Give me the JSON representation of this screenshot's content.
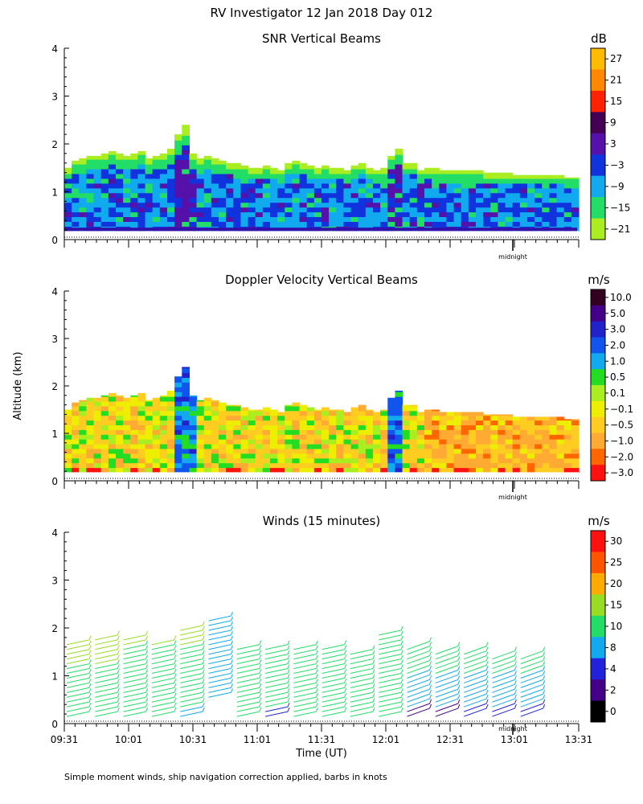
{
  "figure_title": "RV Investigator  12 Jan 2018 Day 012",
  "shared": {
    "ylabel": "Altitude (km)",
    "xlabel": "Time (UT)",
    "midnight_label": "midnight",
    "footnote": "Simple moment winds, ship navigation correction applied, barbs in knots"
  },
  "chart_data": [
    {
      "type": "heatmap",
      "title": "SNR Vertical Beams",
      "unit": "dB",
      "ylim": [
        0,
        4
      ],
      "yticks": [
        "0",
        "1",
        "2",
        "3",
        "4"
      ],
      "colorbar_labels": [
        "27",
        "21",
        "15",
        "9",
        "3",
        "−3",
        "−9",
        "−15",
        "−21"
      ],
      "colorbar_colors": [
        "#ffbb00",
        "#ff8800",
        "#ff2200",
        "#440055",
        "#5511aa",
        "#1133dd",
        "#11aaee",
        "#22dd66",
        "#aaee22"
      ],
      "cloud_top_km": [
        1.5,
        1.65,
        1.7,
        1.75,
        1.75,
        1.8,
        1.85,
        1.8,
        1.75,
        1.8,
        1.85,
        1.7,
        1.75,
        1.8,
        1.9,
        2.2,
        2.4,
        1.8,
        1.7,
        1.75,
        1.7,
        1.65,
        1.6,
        1.6,
        1.55,
        1.5,
        1.5,
        1.55,
        1.5,
        1.45,
        1.6,
        1.65,
        1.6,
        1.55,
        1.5,
        1.55,
        1.5,
        1.5,
        1.45,
        1.55,
        1.6,
        1.5,
        1.45,
        1.5,
        1.75,
        1.9,
        1.6,
        1.6,
        1.45,
        1.5,
        1.5,
        1.45,
        1.45,
        1.45,
        1.45,
        1.45,
        1.45,
        1.4,
        1.4,
        1.4,
        1.4,
        1.35,
        1.35,
        1.35,
        1.35,
        1.35,
        1.35,
        1.35,
        1.3,
        1.3
      ]
    },
    {
      "type": "heatmap",
      "title": "Doppler Velocity Vertical Beams",
      "unit": "m/s",
      "ylim": [
        0,
        4
      ],
      "yticks": [
        "0",
        "1",
        "2",
        "3",
        "4"
      ],
      "colorbar_labels": [
        "10.0",
        "5.0",
        "3.0",
        "2.0",
        "1.0",
        "0.5",
        "0.1",
        "−0.1",
        "−0.5",
        "−1.0",
        "−2.0",
        "−3.0"
      ],
      "colorbar_colors": [
        "#330022",
        "#440088",
        "#2222cc",
        "#1155ee",
        "#11aaee",
        "#22dd22",
        "#aaee22",
        "#eeee00",
        "#ffcc22",
        "#ffaa33",
        "#ff6600",
        "#ff1111"
      ]
    },
    {
      "type": "scatter",
      "title": "Winds (15 minutes)",
      "unit": "m/s",
      "ylim": [
        0,
        4
      ],
      "yticks": [
        "0",
        "1",
        "2",
        "3",
        "4"
      ],
      "x_ticklabels": [
        "09:31",
        "10:01",
        "10:31",
        "11:01",
        "11:31",
        "12:01",
        "12:31",
        "13:01",
        "13:31"
      ],
      "colorbar_labels": [
        "30",
        "25",
        "20",
        "15",
        "10",
        "8",
        "4",
        "2",
        "0"
      ],
      "colorbar_colors": [
        "#ff1111",
        "#ff5500",
        "#ffaa00",
        "#99dd22",
        "#22dd66",
        "#11aaee",
        "#2222dd",
        "#440088",
        "#000000"
      ],
      "profile_tops_km": [
        1.75,
        1.85,
        1.85,
        1.75,
        2.05,
        2.2,
        1.65,
        1.65,
        1.6,
        1.65,
        1.55,
        1.95,
        1.6,
        1.5,
        1.5,
        1.45,
        1.4
      ],
      "profile_bottoms_km": [
        0.15,
        0.15,
        0.15,
        0.15,
        0.15,
        0.55,
        0.15,
        0.15,
        0.15,
        0.15,
        0.15,
        0.15,
        0.15,
        0.15,
        0.15,
        0.15,
        0.15
      ]
    }
  ]
}
